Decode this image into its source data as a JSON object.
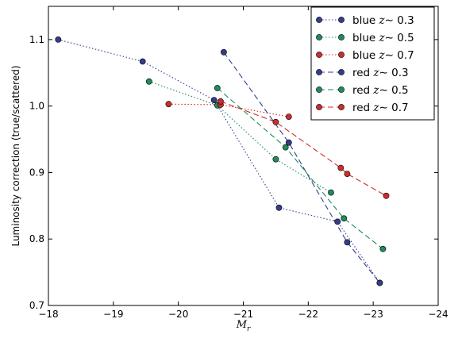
{
  "chart_data": {
    "type": "line",
    "xlabel": "M",
    "xlabel_subscript": "r",
    "ylabel": "Luminosity correction (true/scattered)",
    "xlim": [
      -18,
      -24
    ],
    "ylim": [
      0.7,
      1.15
    ],
    "x_reversed": true,
    "x_ticks": [
      -18,
      -19,
      -20,
      -21,
      -22,
      -23,
      -24
    ],
    "y_ticks": [
      0.7,
      0.8,
      0.9,
      1.0,
      1.1
    ],
    "x_tick_labels": [
      "−18",
      "−19",
      "−20",
      "−21",
      "−22",
      "−23",
      "−24"
    ],
    "y_tick_labels": [
      "0.7",
      "0.8",
      "0.9",
      "1.0",
      "1.1"
    ],
    "grid": false,
    "legend_position": "top-right",
    "series": [
      {
        "name": "blue",
        "z_label": "z",
        "z_op": "∼",
        "z_value": "0.3",
        "color": "#353c8c",
        "linestyle": "dotted",
        "x": [
          -18.15,
          -19.45,
          -20.55,
          -21.55,
          -22.45,
          -23.1
        ],
        "y": [
          1.1,
          1.067,
          1.009,
          0.847,
          0.826,
          0.734
        ]
      },
      {
        "name": "blue",
        "z_label": "z",
        "z_op": "∼",
        "z_value": "0.5",
        "color": "#1f8c5a",
        "linestyle": "dotted",
        "x": [
          -19.55,
          -20.6,
          -21.5,
          -22.35
        ],
        "y": [
          1.037,
          1.001,
          0.92,
          0.87
        ]
      },
      {
        "name": "blue",
        "z_label": "z",
        "z_op": "∼",
        "z_value": "0.7",
        "color": "#cc2d2d",
        "linestyle": "dotted",
        "x": [
          -19.85,
          -20.65,
          -21.7
        ],
        "y": [
          1.003,
          1.002,
          0.984
        ]
      },
      {
        "name": "red",
        "z_label": "z",
        "z_op": "∼",
        "z_value": "0.3",
        "color": "#353c8c",
        "linestyle": "dashed",
        "x": [
          -20.7,
          -21.7,
          -22.6,
          -23.1
        ],
        "y": [
          1.081,
          0.945,
          0.795,
          0.734
        ]
      },
      {
        "name": "red",
        "z_label": "z",
        "z_op": "∼",
        "z_value": "0.5",
        "color": "#1f8c5a",
        "linestyle": "dashed",
        "x": [
          -20.6,
          -21.65,
          -22.55,
          -23.15
        ],
        "y": [
          1.027,
          0.938,
          0.831,
          0.785
        ]
      },
      {
        "name": "red",
        "z_label": "z",
        "z_op": "∼",
        "z_value": "0.7",
        "color": "#cc2d2d",
        "linestyle": "dashed",
        "x": [
          -20.65,
          -21.5,
          -22.5,
          -22.6,
          -23.2
        ],
        "y": [
          1.007,
          0.976,
          0.907,
          0.898,
          0.865
        ]
      }
    ]
  }
}
